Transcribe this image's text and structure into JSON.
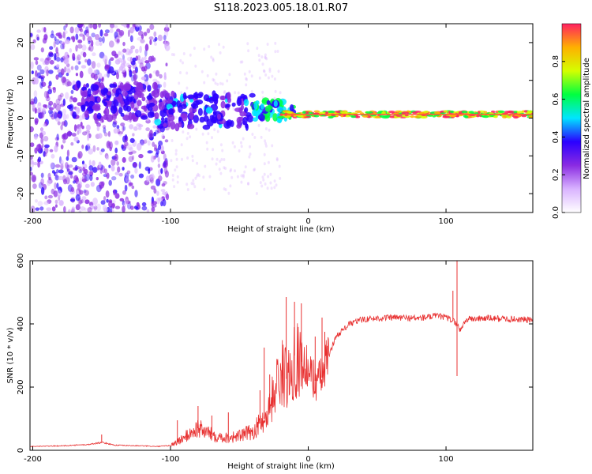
{
  "title": "S118.2023.005.18.01.R07",
  "colors": {
    "snr_line": "#e83030"
  },
  "chart_data": [
    {
      "type": "heatmap",
      "xlabel": "Height of straight line (km)",
      "ylabel": "Frequency (Hz)",
      "xlim": [
        -202,
        163
      ],
      "ylim": [
        -25,
        25
      ],
      "xticks": [
        -200,
        -100,
        0,
        100
      ],
      "yticks": [
        -20,
        -10,
        0,
        10,
        20
      ],
      "colorbar": {
        "label": "Normalized spectral amplitude",
        "range": [
          0.0,
          1.0
        ],
        "ticks": [
          "0.0",
          "0.2",
          "0.4",
          "0.6",
          "0.8"
        ],
        "colormap": [
          "#ffffff",
          "#d9b3ff",
          "#8a2be2",
          "#2a00ff",
          "#00e5ff",
          "#00ff40",
          "#d4ff00",
          "#ffb000",
          "#ff2060"
        ]
      },
      "tones": [
        {
          "x_start": -170,
          "x_end": -110,
          "frequency": 4.5,
          "amplitude": 0.35
        },
        {
          "x_start": -110,
          "x_end": -40,
          "frequency": 2.0,
          "amplitude": 0.4
        },
        {
          "x_start": -40,
          "x_end": -10,
          "frequency": 2.0,
          "amplitude": 0.55
        },
        {
          "x_start": -20,
          "x_end": 163,
          "frequency": 1.0,
          "amplitude": 0.95
        }
      ]
    },
    {
      "type": "line",
      "xlabel": "Height of straight line (km)",
      "ylabel": "SNR (10 * v/v)",
      "xlim": [
        -202,
        163
      ],
      "ylim": [
        0,
        600
      ],
      "xticks": [
        -200,
        -100,
        0,
        100
      ],
      "yticks": [
        0,
        200,
        400,
        600
      ],
      "x": [
        -202,
        -180,
        -160,
        -150,
        -140,
        -120,
        -110,
        -100,
        -90,
        -80,
        -70,
        -60,
        -50,
        -40,
        -30,
        -25,
        -20,
        -15,
        -10,
        -5,
        0,
        5,
        10,
        15,
        20,
        30,
        40,
        60,
        80,
        95,
        100,
        105,
        108,
        110,
        115,
        130,
        150,
        163
      ],
      "y": [
        12,
        14,
        18,
        25,
        16,
        14,
        12,
        15,
        40,
        70,
        50,
        40,
        45,
        60,
        110,
        180,
        250,
        220,
        300,
        280,
        250,
        220,
        230,
        300,
        360,
        400,
        415,
        420,
        418,
        425,
        420,
        410,
        400,
        380,
        415,
        418,
        415,
        412
      ],
      "spikes": [
        {
          "x": -150,
          "y": 50
        },
        {
          "x": -95,
          "y": 95
        },
        {
          "x": -80,
          "y": 140
        },
        {
          "x": -70,
          "y": 110
        },
        {
          "x": -58,
          "y": 120
        },
        {
          "x": -35,
          "y": 190
        },
        {
          "x": -32,
          "y": 325
        },
        {
          "x": -28,
          "y": 240
        },
        {
          "x": -16,
          "y": 485
        },
        {
          "x": -10,
          "y": 470
        },
        {
          "x": -5,
          "y": 465
        },
        {
          "x": 5,
          "y": 360
        },
        {
          "x": 10,
          "y": 420
        },
        {
          "x": 12,
          "y": 375
        },
        {
          "x": 105,
          "y": 505
        },
        {
          "x": 108,
          "y": 610
        },
        {
          "x": 108,
          "y": 235
        }
      ]
    }
  ]
}
